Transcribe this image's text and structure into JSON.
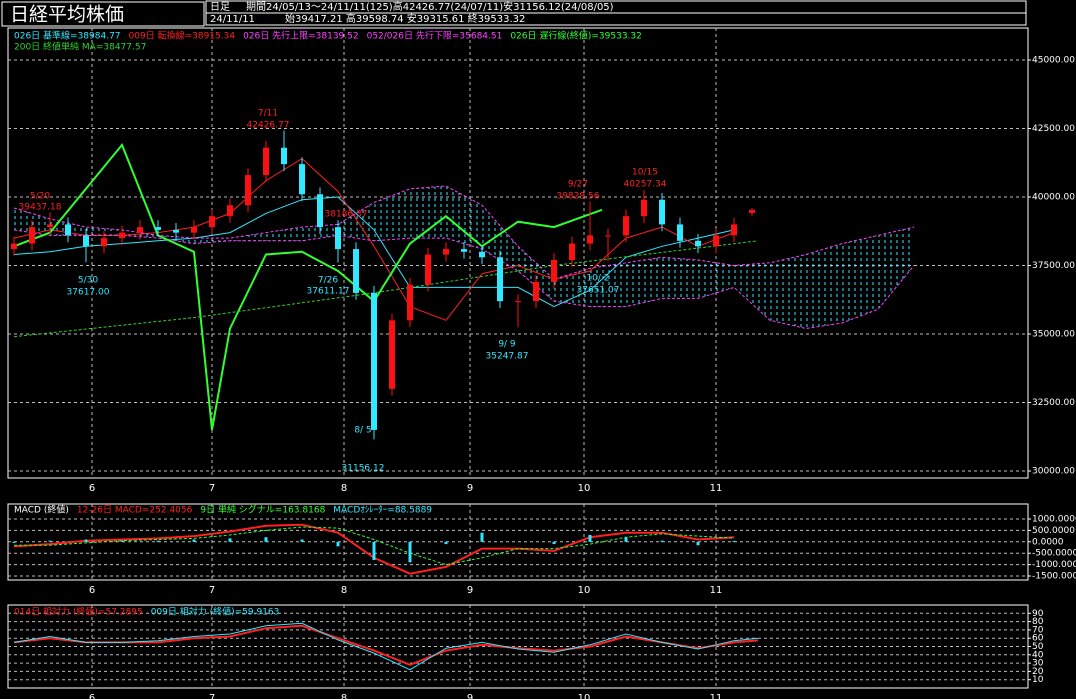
{
  "header": {
    "title": "日経平均株価",
    "period_type": "日足",
    "period": "期間24/05/13～24/11/11(125)高42426.77(24/07/11)安31156.12(24/08/05)",
    "date": "24/11/11",
    "ohlc": "始39417.21 高39598.74 安39315.61 終39533.32"
  },
  "chart_data": [
    {
      "type": "candlestick",
      "xlim": [
        -1,
        169
      ],
      "ylim": [
        29745,
        46168
      ],
      "grid": true,
      "yticks": [
        {
          "value": 45000,
          "label": "45000.00"
        },
        {
          "value": 42500,
          "label": "42500.00"
        },
        {
          "value": 40000,
          "label": "40000.00"
        },
        {
          "value": 37500,
          "label": "37500.00"
        },
        {
          "value": 35000,
          "label": "35000.00"
        },
        {
          "value": 32500,
          "label": "32500.00"
        },
        {
          "value": 30000,
          "label": "30000.00"
        }
      ],
      "xticks": [
        {
          "value": 13,
          "label": "6"
        },
        {
          "value": 33,
          "label": "7"
        },
        {
          "value": 55,
          "label": "8"
        },
        {
          "value": 76,
          "label": "9"
        },
        {
          "value": 95,
          "label": "10"
        },
        {
          "value": 117,
          "label": "11"
        }
      ],
      "up_color": "#ff1010",
      "down_color": "#30e8ff",
      "x": [
        0,
        3,
        6,
        9,
        12,
        15,
        18,
        21,
        24,
        27,
        30,
        33,
        36,
        39,
        42,
        45,
        48,
        51,
        54,
        57,
        60,
        63,
        66,
        69,
        72,
        75,
        78,
        81,
        84,
        87,
        90,
        93,
        96,
        99,
        102,
        105,
        108,
        111,
        114,
        117,
        120,
        123
      ],
      "open": [
        38100,
        38300,
        38900,
        39000,
        38600,
        38200,
        38500,
        38700,
        38900,
        38800,
        38700,
        38900,
        39300,
        39700,
        40800,
        41800,
        41200,
        40100,
        38900,
        38100,
        36500,
        33000,
        35500,
        36800,
        37900,
        38100,
        38000,
        37800,
        36200,
        36200,
        36900,
        37700,
        38300,
        38600,
        38600,
        39300,
        39900,
        39000,
        38400,
        38200,
        38600,
        39417.21
      ],
      "high": [
        38550,
        39150,
        39437.18,
        39250,
        38850,
        38750,
        38950,
        39150,
        39150,
        39050,
        39150,
        39550,
        39950,
        41050,
        42050,
        42426.77,
        41450,
        40350,
        39150,
        38350,
        36750,
        35750,
        37050,
        38150,
        38350,
        38350,
        38250,
        38050,
        36450,
        37150,
        37950,
        38550,
        39829.56,
        38850,
        39550,
        40257.34,
        40150,
        39250,
        38650,
        38850,
        39250,
        39598.74
      ],
      "low": [
        37850,
        38050,
        38650,
        38350,
        37617,
        37950,
        38250,
        38450,
        38550,
        38450,
        38450,
        38650,
        39050,
        39450,
        40550,
        40950,
        39850,
        38650,
        37611.17,
        36250,
        31156.12,
        32750,
        35250,
        36550,
        37650,
        37750,
        37550,
        35950,
        35247.87,
        35950,
        36650,
        37450,
        38050,
        37651.07,
        38350,
        39050,
        38750,
        38150,
        37950,
        37950,
        38350,
        39315.61
      ],
      "close": [
        38300,
        38900,
        39000,
        38600,
        38200,
        38500,
        38700,
        38900,
        38800,
        38700,
        38900,
        39300,
        39700,
        40800,
        41800,
        41200,
        40100,
        38900,
        38100,
        36500,
        31500,
        35500,
        36800,
        37900,
        38100,
        38000,
        37800,
        36200,
        36200,
        36900,
        37700,
        38300,
        38600,
        38600,
        39300,
        39900,
        39000,
        38400,
        38200,
        38600,
        39000,
        39533.32
      ],
      "cloud": true,
      "series": [
        {
          "name": "026日 基準線=38984.77",
          "color": "#30e8ff",
          "x": [
            0,
            6,
            12,
            18,
            24,
            30,
            36,
            42,
            48,
            54,
            60,
            66,
            72,
            78,
            84,
            90,
            96,
            102,
            108,
            114,
            120
          ],
          "values": [
            37900,
            38000,
            38200,
            38300,
            38400,
            38500,
            38700,
            39400,
            39900,
            40000,
            38800,
            36700,
            36700,
            36700,
            36700,
            36000,
            36600,
            37800,
            38200,
            38500,
            38800
          ]
        },
        {
          "name": "009日 転換線=38915.34",
          "color": "#ff2020",
          "x": [
            0,
            6,
            12,
            18,
            24,
            30,
            36,
            42,
            48,
            54,
            60,
            66,
            72,
            78,
            84,
            90,
            96,
            102,
            108,
            114,
            120
          ],
          "values": [
            38500,
            38800,
            38600,
            38600,
            38700,
            38900,
            39400,
            40600,
            41400,
            40200,
            38200,
            36000,
            35500,
            37200,
            37500,
            37000,
            37300,
            38500,
            38900,
            38200,
            38700
          ]
        },
        {
          "name": "026日 先行上限=38139.52",
          "color": "#ff40ff",
          "dashed": true,
          "x": [
            0,
            6,
            12,
            18,
            24,
            30,
            36,
            42,
            48,
            54,
            60,
            66,
            72,
            78,
            84,
            90,
            96,
            102,
            108,
            114,
            120,
            126,
            132,
            138,
            144,
            150
          ],
          "values": [
            39600,
            39200,
            38900,
            38800,
            38600,
            38500,
            38500,
            38700,
            38900,
            39000,
            39800,
            40300,
            40400,
            39700,
            38200,
            37000,
            37400,
            37600,
            37800,
            37700,
            37500,
            37600,
            37900,
            38300,
            38600,
            38900
          ]
        },
        {
          "name": "052/026日 先行下限=35684.51",
          "color": "#ff40ff",
          "dashed": true,
          "x": [
            0,
            6,
            12,
            18,
            24,
            30,
            36,
            42,
            48,
            54,
            60,
            66,
            72,
            78,
            84,
            90,
            96,
            102,
            108,
            114,
            120,
            126,
            132,
            138,
            144,
            150
          ],
          "values": [
            38800,
            38600,
            38600,
            38600,
            38500,
            38300,
            38400,
            38400,
            38400,
            38600,
            38400,
            38500,
            38500,
            38100,
            37300,
            36200,
            36000,
            36000,
            36300,
            36300,
            36700,
            35500,
            35200,
            35400,
            35900,
            37500
          ]
        },
        {
          "name": "026日 遅行線(終値)=39533.32",
          "color": "#30ff30",
          "width": 2,
          "x": [
            0,
            6,
            12,
            18,
            24,
            30,
            33,
            36,
            42,
            48,
            54,
            60,
            66,
            72,
            78,
            84,
            90,
            98
          ],
          "values": [
            38200,
            38700,
            40300,
            41900,
            38600,
            38000,
            31500,
            35200,
            37900,
            38000,
            37300,
            36200,
            38300,
            39300,
            38200,
            39100,
            38900,
            39533
          ]
        },
        {
          "name": "200日 終値単純 MA=38477.57",
          "color": "#30d030",
          "dashed": true,
          "x": [
            0,
            30,
            60,
            90,
            124
          ],
          "values": [
            34900,
            35600,
            36500,
            37500,
            38400
          ]
        }
      ],
      "annotations": [
        {
          "date": "5/20",
          "price": "39437.18",
          "color": "#ff2020"
        },
        {
          "date": "5/30",
          "price": "37617.00",
          "color": "#30e8ff"
        },
        {
          "date": "7/11",
          "price": "42426.77",
          "color": "#ff2020"
        },
        {
          "date": "7/26",
          "price": "37611.17",
          "color": "#30e8ff"
        },
        {
          "date": "8/ 5",
          "price": "31156.12",
          "color": "#30e8ff"
        },
        {
          "date": "9/ 9",
          "price": "35247.87",
          "color": "#30e8ff"
        },
        {
          "date": "9/27",
          "price": "39829.56",
          "color": "#ff2020"
        },
        {
          "date": "10/ 2",
          "price": "37651.07",
          "color": "#30e8ff"
        },
        {
          "date": "10/15",
          "price": "40257.34",
          "color": "#ff2020"
        },
        {
          "price": "38186.37",
          "color": "#ff2020"
        }
      ]
    },
    {
      "type": "line",
      "label": "MACD (終値)",
      "xlim": [
        -1,
        169
      ],
      "ylim": [
        -1675,
        1658
      ],
      "grid": true,
      "yticks": [
        {
          "value": 1000,
          "label": "1000.0000"
        },
        {
          "value": 500,
          "label": "500.0000"
        },
        {
          "value": 0,
          "label": "0.0000"
        },
        {
          "value": -500,
          "label": "-500.0000"
        },
        {
          "value": -1000,
          "label": "-1000.0000"
        },
        {
          "value": -1500,
          "label": "-1500.0000"
        }
      ],
      "xticks": [
        {
          "value": 13,
          "label": "6"
        },
        {
          "value": 33,
          "label": "7"
        },
        {
          "value": 55,
          "label": "8"
        },
        {
          "value": 76,
          "label": "9"
        },
        {
          "value": 95,
          "label": "10"
        },
        {
          "value": 117,
          "label": "11"
        }
      ],
      "series": [
        {
          "name": "12-26日 MACD=252.4056",
          "color": "#ff2020",
          "width": 2,
          "x": [
            0,
            6,
            12,
            18,
            24,
            30,
            36,
            42,
            48,
            54,
            60,
            66,
            72,
            78,
            84,
            90,
            96,
            102,
            108,
            114,
            120
          ],
          "values": [
            -200,
            -100,
            50,
            100,
            150,
            250,
            450,
            700,
            750,
            400,
            -700,
            -1400,
            -1100,
            -300,
            -300,
            -400,
            200,
            400,
            400,
            100,
            200
          ]
        },
        {
          "name": "9日 単純 シグナル=163.8168",
          "color": "#30ff30",
          "dashed": true,
          "x": [
            0,
            6,
            12,
            18,
            24,
            30,
            36,
            42,
            48,
            54,
            60,
            66,
            72,
            78,
            84,
            90,
            96,
            102,
            108,
            114,
            120
          ],
          "values": [
            -150,
            -150,
            -50,
            50,
            100,
            150,
            300,
            500,
            650,
            600,
            100,
            -500,
            -1000,
            -700,
            -300,
            -300,
            -100,
            200,
            350,
            250,
            160
          ]
        },
        {
          "name": "MACDｵｼﾚｰﾀｰ=88.5889",
          "color": "#30e8ff",
          "style": "bar",
          "x": [
            0,
            6,
            12,
            18,
            24,
            30,
            36,
            42,
            48,
            54,
            60,
            66,
            72,
            78,
            84,
            90,
            96,
            102,
            108,
            114,
            120
          ],
          "values": [
            -50,
            50,
            100,
            50,
            50,
            100,
            150,
            200,
            100,
            -200,
            -800,
            -900,
            -100,
            400,
            0,
            -100,
            300,
            200,
            50,
            -150,
            40
          ]
        }
      ]
    },
    {
      "type": "line",
      "xlim": [
        -1,
        169
      ],
      "ylim": [
        0,
        100
      ],
      "grid": true,
      "yticks": [
        90,
        80,
        70,
        60,
        50,
        40,
        30,
        20,
        10
      ],
      "xticks": [
        {
          "value": 13,
          "label": "6"
        },
        {
          "value": 33,
          "label": "7"
        },
        {
          "value": 55,
          "label": "8"
        },
        {
          "value": 76,
          "label": "9"
        },
        {
          "value": 95,
          "label": "10"
        },
        {
          "value": 117,
          "label": "11"
        }
      ],
      "series": [
        {
          "name": "014日 相対力 (終値)=57.2895",
          "color": "#ff2020",
          "width": 2,
          "x": [
            0,
            6,
            12,
            18,
            24,
            30,
            36,
            42,
            48,
            54,
            60,
            66,
            72,
            78,
            84,
            90,
            96,
            102,
            108,
            114,
            120,
            124
          ],
          "values": [
            55,
            60,
            55,
            55,
            55,
            60,
            62,
            72,
            75,
            60,
            45,
            28,
            45,
            52,
            48,
            45,
            50,
            62,
            55,
            48,
            55,
            57.2895
          ]
        },
        {
          "name": "009日 相対力 (終値)=59.9163",
          "color": "#30e8ff",
          "x": [
            0,
            6,
            12,
            18,
            24,
            30,
            36,
            42,
            48,
            54,
            60,
            66,
            72,
            78,
            84,
            90,
            96,
            102,
            108,
            114,
            120,
            124
          ],
          "values": [
            55,
            62,
            55,
            55,
            57,
            62,
            65,
            75,
            78,
            58,
            42,
            22,
            48,
            55,
            47,
            43,
            52,
            65,
            55,
            47,
            57,
            59.9163
          ]
        }
      ]
    }
  ]
}
